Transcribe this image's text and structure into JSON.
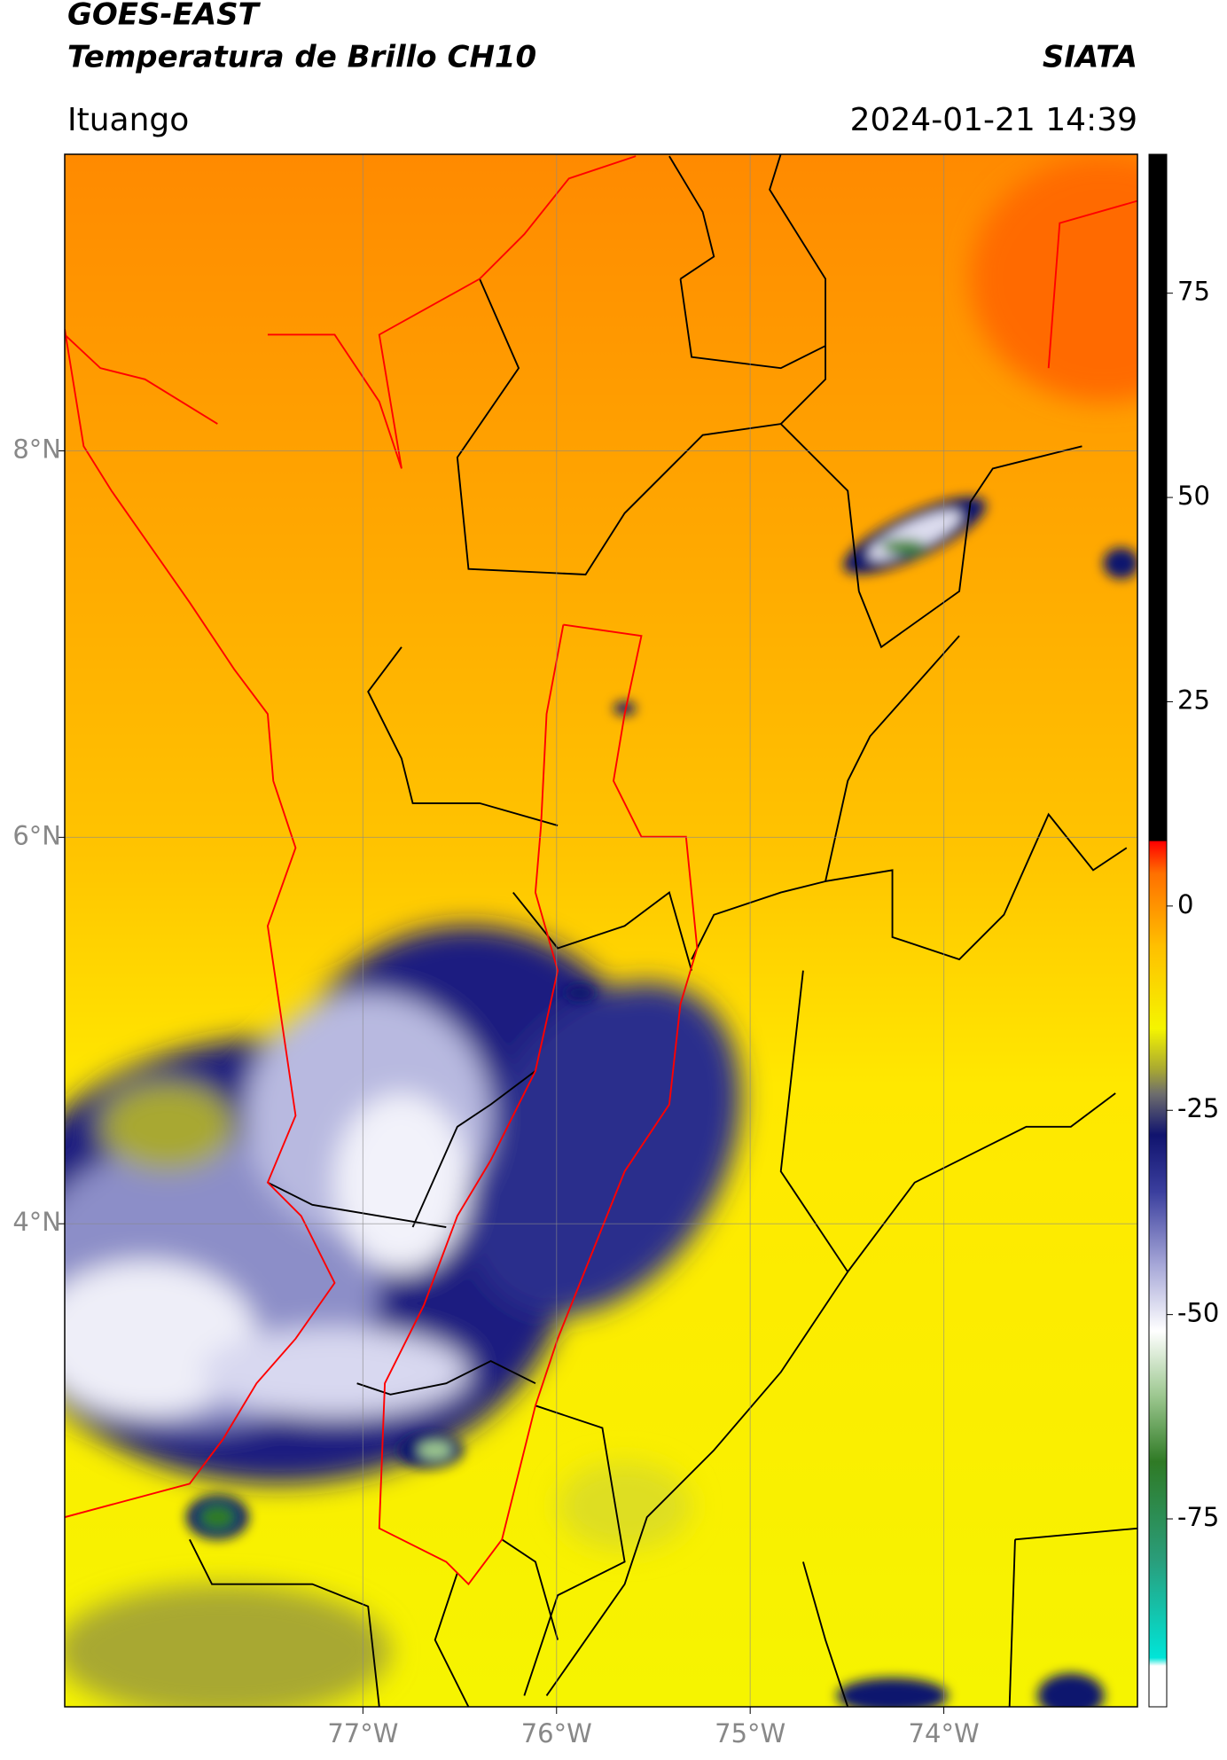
{
  "header": {
    "title": "GOES-EAST",
    "subtitle": "Temperatura de Brillo CH10",
    "agency": "SIATA",
    "location": "Ituango",
    "datetime": "2024-01-21 14:39"
  },
  "map": {
    "lonlim": [
      -78.54,
      -73.0
    ],
    "latlim": [
      1.5,
      9.535
    ],
    "lon_ticks": [
      {
        "value": -77,
        "label": "77°W"
      },
      {
        "value": -76,
        "label": "76°W"
      },
      {
        "value": -75,
        "label": "75°W"
      },
      {
        "value": -74,
        "label": "74°W"
      }
    ],
    "lat_ticks": [
      {
        "value": 8,
        "label": "8°N"
      },
      {
        "value": 6,
        "label": "6°N"
      },
      {
        "value": 4,
        "label": "4°N"
      }
    ],
    "grid": true
  },
  "colorbar": {
    "clim": [
      -98,
      92
    ],
    "ticks": [
      75,
      50,
      25,
      0,
      -25,
      -50,
      -75
    ],
    "colormap": [
      {
        "value": -98,
        "color": "#ffffff"
      },
      {
        "value": -93,
        "color": "#ffffff"
      },
      {
        "value": -92,
        "color": "#00e5d8"
      },
      {
        "value": -80,
        "color": "#2a9d7a"
      },
      {
        "value": -68,
        "color": "#2f7a25"
      },
      {
        "value": -60,
        "color": "#9cc78f"
      },
      {
        "value": -52,
        "color": "#ffffff"
      },
      {
        "value": -44,
        "color": "#a7a8d8"
      },
      {
        "value": -35,
        "color": "#3b3f9e"
      },
      {
        "value": -28,
        "color": "#10136e"
      },
      {
        "value": -23,
        "color": "#6d6d6d"
      },
      {
        "value": -20,
        "color": "#a8a832"
      },
      {
        "value": -15,
        "color": "#f5f500"
      },
      {
        "value": -5,
        "color": "#ffc000"
      },
      {
        "value": 4,
        "color": "#ff7000"
      },
      {
        "value": 7.9,
        "color": "#ff0000"
      },
      {
        "value": 8,
        "color": "#000000"
      },
      {
        "value": 92,
        "color": "#000000"
      }
    ]
  }
}
